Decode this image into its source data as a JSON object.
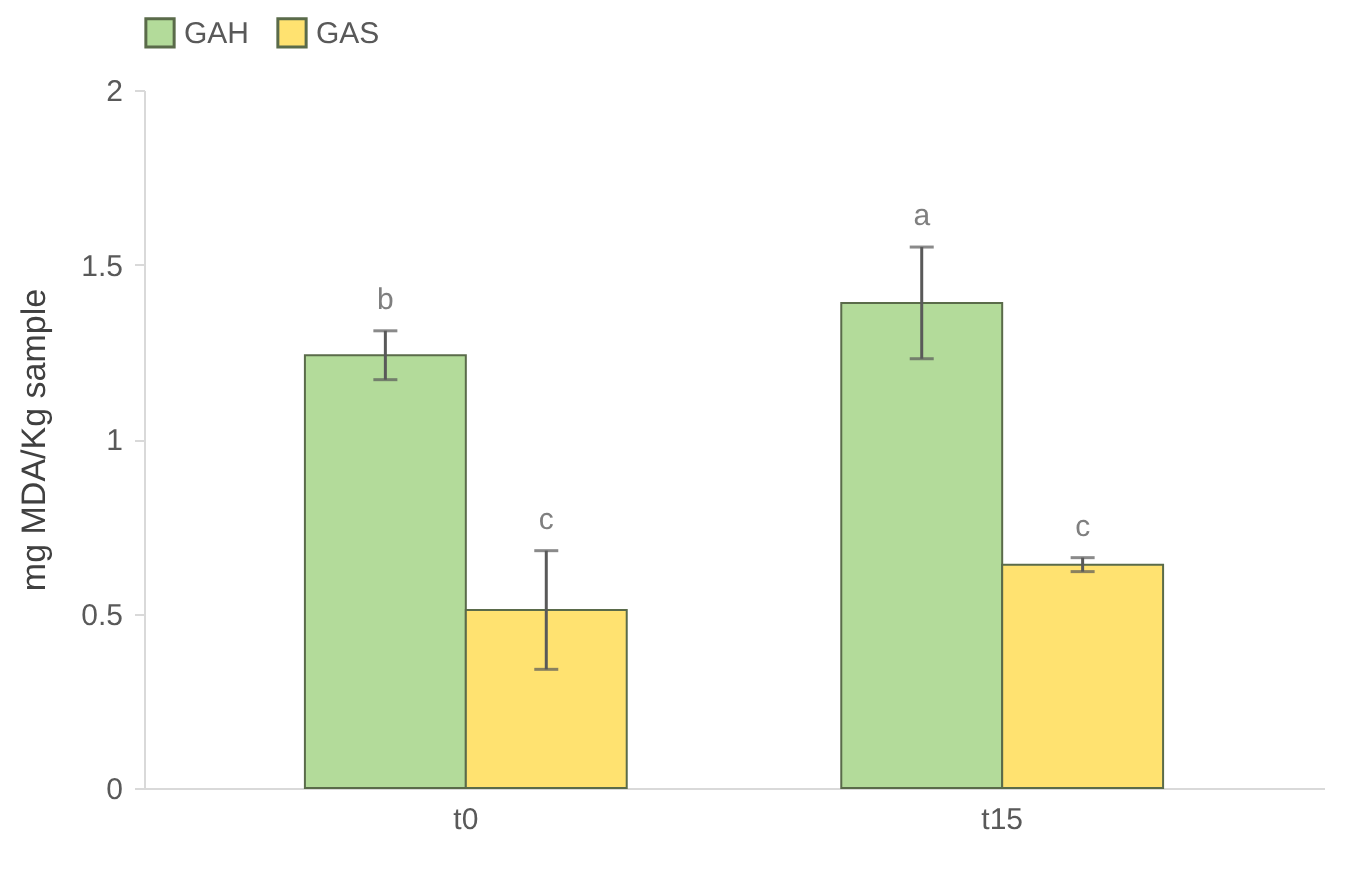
{
  "chart_data": {
    "type": "bar",
    "ylabel": "mg MDA/Kg sample",
    "categories": [
      "t0",
      "t15"
    ],
    "series": [
      {
        "name": "GAH",
        "color": "#b3db9a",
        "values": [
          1.24,
          1.39
        ],
        "errors": [
          0.07,
          0.16
        ],
        "value_labels": [
          "b",
          "a"
        ]
      },
      {
        "name": "GAS",
        "color": "#ffe270",
        "values": [
          0.51,
          0.64
        ],
        "errors": [
          0.17,
          0.02
        ],
        "value_labels": [
          "c",
          "c"
        ]
      }
    ],
    "ylim": [
      0,
      2
    ],
    "yticks": [
      0,
      0.5,
      1,
      1.5,
      2
    ],
    "grid": false,
    "legend": "top"
  }
}
